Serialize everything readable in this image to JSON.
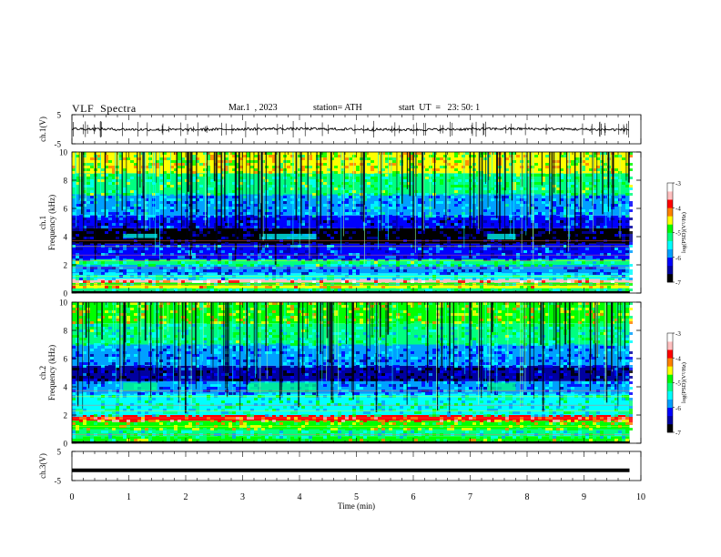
{
  "header": {
    "title": "VLF  Spectra",
    "date": "Mar.1  , 2023",
    "station": "station= ATH",
    "start_ut": "start  UT  =   23: 50: 1"
  },
  "chart_data": [
    {
      "type": "line",
      "name": "ch1-waveform",
      "ylabel": "ch.1(V)",
      "ylim": [
        -5,
        5
      ],
      "yticks": [
        "5",
        "-5"
      ],
      "xlim": [
        0,
        10
      ],
      "trace_level_v": 0.0,
      "trace_amplitude_v": 1.0,
      "color": "#000000"
    },
    {
      "type": "heatmap",
      "name": "ch1-spectrogram",
      "ylabel": "ch.1\nFrequency (kHz)",
      "ylabel_line1": "ch.1",
      "ylabel_line2": "Frequency (kHz)",
      "ylim": [
        0,
        10
      ],
      "yticks": [
        "0",
        "2",
        "4",
        "6",
        "8",
        "10"
      ],
      "xlim": [
        0,
        9.8
      ],
      "colorbar": {
        "label": "log(PSD)(V²/Hz)",
        "range": [
          -7,
          -3
        ],
        "ticks": [
          "-3",
          "-4",
          "-5",
          "-6",
          "-7"
        ],
        "colors": [
          "#000000",
          "#0000a0",
          "#0000ff",
          "#00a0ff",
          "#00ffff",
          "#00ff80",
          "#00ff00",
          "#ffff00",
          "#ff8000",
          "#ff0000",
          "#ffc0c0",
          "#ffffff"
        ]
      },
      "bands": [
        {
          "f": [
            0.0,
            0.15
          ],
          "level": -7.0
        },
        {
          "f": [
            0.15,
            0.35
          ],
          "level": -5.2
        },
        {
          "f": [
            0.35,
            0.55
          ],
          "level": -4.4
        },
        {
          "f": [
            0.55,
            0.75
          ],
          "level": -5.0
        },
        {
          "f": [
            0.75,
            1.0
          ],
          "level": -3.6
        },
        {
          "f": [
            1.0,
            1.4
          ],
          "level": -5.5
        },
        {
          "f": [
            1.4,
            2.0
          ],
          "level": -6.0
        },
        {
          "f": [
            2.0,
            2.4
          ],
          "level": -5.2
        },
        {
          "f": [
            2.4,
            3.5
          ],
          "level": -6.1
        },
        {
          "f": [
            3.5,
            4.6
          ],
          "level": -6.7
        },
        {
          "f": [
            4.6,
            5.5
          ],
          "level": -6.2
        },
        {
          "f": [
            5.5,
            7.0
          ],
          "level": -5.8
        },
        {
          "f": [
            7.0,
            8.5
          ],
          "level": -5.1
        },
        {
          "f": [
            8.5,
            10.0
          ],
          "level": -4.6
        }
      ],
      "whistler_patches": [
        {
          "t": [
            0.9,
            1.5
          ],
          "f": [
            3.9,
            4.2
          ],
          "level": -5.4
        },
        {
          "t": [
            3.3,
            4.3
          ],
          "f": [
            3.8,
            4.2
          ],
          "level": -5.4
        },
        {
          "t": [
            7.3,
            7.8
          ],
          "f": [
            3.8,
            4.2
          ],
          "level": -5.4
        }
      ]
    },
    {
      "type": "heatmap",
      "name": "ch2-spectrogram",
      "ylabel": "ch.2\nFrequency (kHz)",
      "ylabel_line1": "ch.2",
      "ylabel_line2": "Frequency (kHz)",
      "ylim": [
        0,
        10
      ],
      "yticks": [
        "0",
        "2",
        "4",
        "6",
        "8",
        "10"
      ],
      "xlim": [
        0,
        9.8
      ],
      "colorbar": {
        "label": "log(PSD)(V²/Hz)",
        "range": [
          -7,
          -3
        ],
        "ticks": [
          "-3",
          "-4",
          "-5",
          "-6",
          "-7"
        ],
        "colors": [
          "#000000",
          "#0000a0",
          "#0000ff",
          "#00a0ff",
          "#00ffff",
          "#00ff80",
          "#00ff00",
          "#ffff00",
          "#ff8000",
          "#ff0000",
          "#ffc0c0",
          "#ffffff"
        ]
      },
      "bands": [
        {
          "f": [
            0.0,
            0.15
          ],
          "level": -7.0
        },
        {
          "f": [
            0.15,
            0.5
          ],
          "level": -4.8
        },
        {
          "f": [
            0.5,
            1.0
          ],
          "level": -5.3
        },
        {
          "f": [
            1.0,
            1.6
          ],
          "level": -4.7
        },
        {
          "f": [
            1.6,
            2.0
          ],
          "level": -4.0
        },
        {
          "f": [
            2.0,
            3.5
          ],
          "level": -5.4
        },
        {
          "f": [
            3.5,
            4.4
          ],
          "level": -5.9
        },
        {
          "f": [
            4.4,
            5.5
          ],
          "level": -6.5
        },
        {
          "f": [
            5.5,
            7.0
          ],
          "level": -5.9
        },
        {
          "f": [
            7.0,
            8.5
          ],
          "level": -5.2
        },
        {
          "f": [
            8.5,
            10.0
          ],
          "level": -4.7
        }
      ],
      "whistler_patches": [
        {
          "t": [
            0.9,
            1.5
          ],
          "f": [
            3.7,
            4.3
          ],
          "level": -5.3
        },
        {
          "t": [
            3.1,
            4.3
          ],
          "f": [
            3.6,
            4.3
          ],
          "level": -5.3
        },
        {
          "t": [
            7.3,
            7.8
          ],
          "f": [
            3.7,
            4.3
          ],
          "level": -5.3
        }
      ]
    },
    {
      "type": "line",
      "name": "ch3-waveform",
      "ylabel": "ch.3(V)",
      "ylim": [
        -5,
        5
      ],
      "yticks": [
        "5",
        "-5"
      ],
      "xlim": [
        0,
        10
      ],
      "trace_level_v": -1.5,
      "trace_amplitude_v": 0.0,
      "color": "#000000"
    }
  ],
  "xaxis": {
    "label": "Time  (min)",
    "range": [
      0,
      10
    ],
    "ticks": [
      "0",
      "1",
      "2",
      "3",
      "4",
      "5",
      "6",
      "7",
      "8",
      "9",
      "10"
    ]
  }
}
